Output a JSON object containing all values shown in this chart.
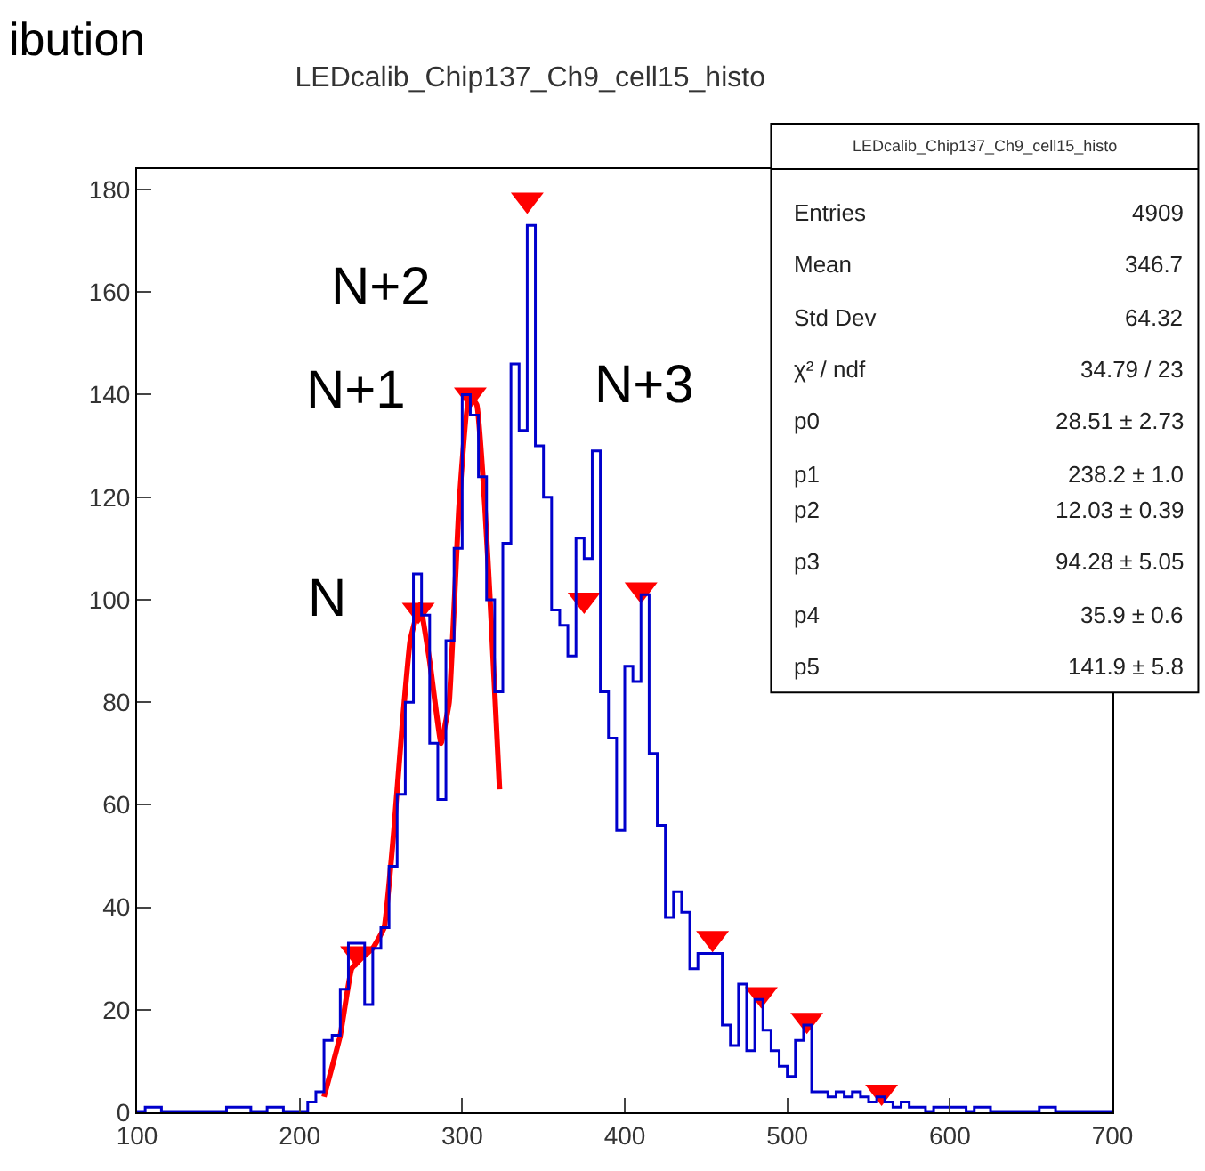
{
  "chart_data": {
    "type": "histogram",
    "title": "LEDcalib_Chip137_Ch9_cell15_histo",
    "bins": [
      100,
      105,
      110,
      115,
      120,
      125,
      130,
      135,
      140,
      145,
      150,
      155,
      160,
      165,
      170,
      175,
      180,
      185,
      190,
      195,
      200,
      205,
      210,
      215,
      220,
      225,
      230,
      235,
      240,
      245,
      250,
      255,
      260,
      265,
      270,
      275,
      280,
      285,
      290,
      295,
      300,
      305,
      310,
      315,
      320,
      325,
      330,
      335,
      340,
      345,
      350,
      355,
      360,
      365,
      370,
      375,
      380,
      385,
      390,
      395,
      400,
      405,
      410,
      415,
      420,
      425,
      430,
      435,
      440,
      445,
      450,
      455,
      460,
      465,
      470,
      475,
      480,
      485,
      490,
      495,
      500,
      505,
      510,
      515,
      520,
      525,
      530,
      535,
      540,
      545,
      550,
      555,
      560,
      565,
      570,
      575,
      580,
      585,
      590,
      595,
      600,
      605,
      610,
      615,
      620,
      625,
      630,
      635,
      640,
      645,
      650,
      655,
      660,
      665,
      670,
      675,
      680,
      685,
      690,
      695,
      700
    ],
    "values": [
      0,
      1,
      1,
      0,
      0,
      0,
      0,
      0,
      0,
      0,
      0,
      1,
      1,
      1,
      0,
      0,
      1,
      1,
      0,
      0,
      0,
      2,
      4,
      14,
      15,
      24,
      33,
      33,
      21,
      32,
      36,
      48,
      62,
      80,
      105,
      97,
      72,
      61,
      92,
      110,
      140,
      136,
      124,
      100,
      82,
      111,
      146,
      133,
      173,
      130,
      120,
      98,
      95,
      89,
      112,
      108,
      129,
      82,
      73,
      55,
      87,
      84,
      101,
      70,
      56,
      38,
      43,
      39,
      28,
      31,
      31,
      31,
      17,
      13,
      25,
      12,
      22,
      16,
      12,
      9,
      7,
      14,
      17,
      4,
      4,
      3,
      4,
      3,
      4,
      3,
      2,
      3,
      2,
      1,
      2,
      1,
      1,
      0,
      1,
      1,
      1,
      1,
      0,
      1,
      1,
      0,
      0,
      0,
      0,
      0,
      0,
      1,
      1,
      0,
      0,
      0,
      0,
      0,
      0,
      0
    ],
    "color": "#0000cc",
    "series": [
      {
        "type": "line",
        "color": "#ff0000",
        "x": [
          215,
          225,
          232,
          238,
          245,
          252,
          258,
          263,
          268,
          274,
          280,
          287,
          292,
          298,
          304,
          309,
          314,
          318,
          323
        ],
        "values": [
          3,
          15,
          28,
          30,
          32,
          36,
          55,
          75,
          92,
          99,
          88,
          72,
          80,
          118,
          140,
          138,
          118,
          95,
          63
        ]
      },
      {
        "type": "scatter",
        "color": "#ff0000",
        "marker": "triangle",
        "x": [
          235,
          273,
          305,
          340,
          375,
          410,
          454,
          484,
          512,
          558
        ],
        "values": [
          31,
          98,
          140,
          178,
          100,
          102,
          34,
          23,
          18,
          4
        ]
      }
    ],
    "xlim": [
      100,
      700
    ],
    "ylim": [
      0,
      184
    ],
    "xticks": [
      100,
      200,
      300,
      400,
      500,
      600,
      700
    ],
    "yticks": [
      0,
      20,
      40,
      60,
      80,
      100,
      120,
      140,
      160,
      180
    ],
    "annotations": [
      "N",
      "N+1",
      "N+2",
      "N+3",
      "ibution",
      "LEDcalib_Chip137_Ch9_cell15_histo",
      "Entries",
      "4909",
      "Mean",
      "346.7",
      "Std Dev",
      "64.32",
      "χ² / ndf",
      "34.79 / 23",
      "p0",
      "28.51 ± 2.73",
      "p1",
      "238.2 ± 1.0",
      "p2",
      "12.03 ± 0.39",
      "p3",
      "94.28 ± 5.05",
      "p4",
      "35.9 ± 0.6",
      "p5",
      "141.9 ± 5.8"
    ]
  }
}
